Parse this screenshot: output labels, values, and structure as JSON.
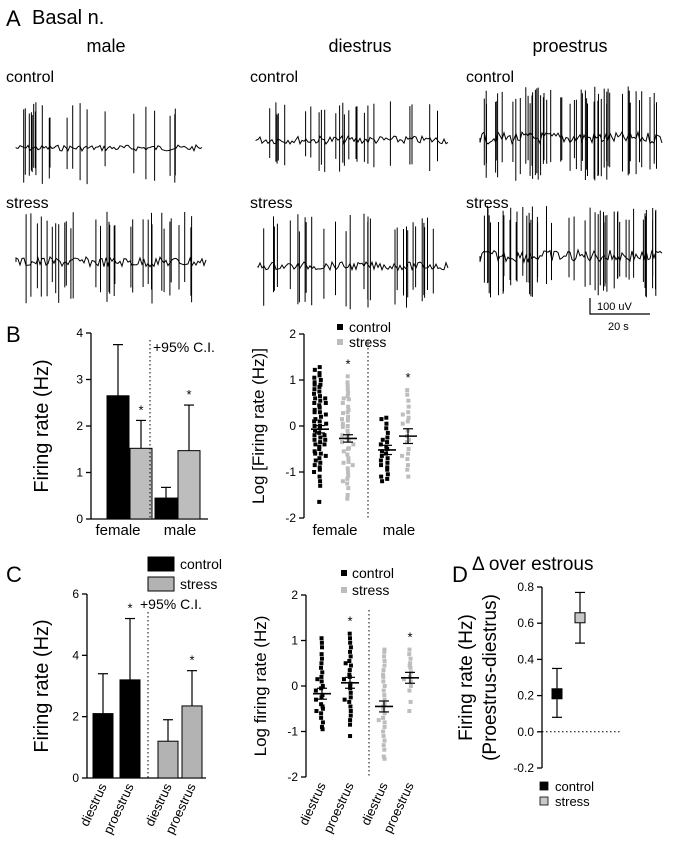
{
  "panel_a": {
    "letter": "A",
    "region": "Basal n.",
    "columns": [
      "male",
      "diestrus",
      "proestrus"
    ],
    "rows": [
      "control",
      "stress"
    ],
    "scale": {
      "voltage": "100 uV",
      "time": "20 s"
    }
  },
  "chart_data": [
    {
      "id": "B-left",
      "panel": "B",
      "type": "bar",
      "ylabel": "Firing rate (Hz)",
      "ylim": [
        0,
        4
      ],
      "yticks": [
        0,
        1,
        2,
        3,
        4
      ],
      "groups": [
        "female",
        "male"
      ],
      "annotation": "+95% C.I.",
      "bars": [
        {
          "group": "female",
          "series": "control",
          "value": 2.65,
          "ci_upper": 3.75,
          "sig": ""
        },
        {
          "group": "female",
          "series": "stress",
          "value": 1.52,
          "ci_upper": 2.12,
          "sig": "*"
        },
        {
          "group": "male",
          "series": "control",
          "value": 0.45,
          "ci_upper": 0.68,
          "sig": ""
        },
        {
          "group": "male",
          "series": "stress",
          "value": 1.47,
          "ci_upper": 2.45,
          "sig": "*"
        }
      ]
    },
    {
      "id": "B-right",
      "panel": "B",
      "type": "scatter",
      "ylabel": "Log [Firing rate (Hz)]",
      "ylim": [
        -2,
        2
      ],
      "yticks": [
        -2,
        -1,
        0,
        1,
        2
      ],
      "groups": [
        "female",
        "male"
      ],
      "legend": [
        {
          "name": "control",
          "color": "#000000"
        },
        {
          "name": "stress",
          "color": "#bdbdbd"
        }
      ],
      "series": [
        {
          "group": "female",
          "series": "control",
          "mean": -0.07,
          "sem": 0.08,
          "sig": "",
          "values": [
            1.28,
            1.22,
            1.15,
            1.1,
            1.05,
            1.0,
            0.95,
            0.9,
            0.85,
            0.8,
            0.75,
            0.7,
            0.65,
            0.6,
            0.55,
            0.5,
            0.45,
            0.4,
            0.35,
            0.3,
            0.25,
            0.2,
            0.15,
            0.1,
            0.05,
            0.0,
            -0.05,
            -0.1,
            -0.15,
            -0.2,
            -0.25,
            -0.3,
            -0.35,
            -0.4,
            -0.45,
            -0.5,
            -0.55,
            -0.6,
            -0.65,
            -0.7,
            -0.75,
            -0.8,
            -0.85,
            -0.9,
            -0.95,
            -1.0,
            -1.1,
            -1.2,
            -1.3,
            -1.65,
            0.9,
            0.5,
            0.1,
            -0.2,
            -0.4,
            -0.6,
            0.3,
            0.0,
            -0.3,
            0.6
          ]
        },
        {
          "group": "female",
          "series": "stress",
          "mean": -0.27,
          "sem": 0.08,
          "sig": "*",
          "values": [
            1.08,
            0.95,
            0.88,
            0.8,
            0.72,
            0.65,
            0.58,
            0.5,
            0.42,
            0.35,
            0.28,
            0.2,
            0.12,
            0.05,
            -0.02,
            -0.1,
            -0.18,
            -0.25,
            -0.32,
            -0.4,
            -0.48,
            -0.55,
            -0.62,
            -0.7,
            -0.78,
            -0.85,
            -0.92,
            -1.0,
            -1.08,
            -1.15,
            -1.25,
            -1.35,
            -1.5,
            -1.58,
            0.3,
            -0.2,
            -0.5,
            0.0,
            -0.8,
            0.6,
            -0.35,
            -1.2,
            0.15
          ]
        },
        {
          "group": "male",
          "series": "control",
          "mean": -0.52,
          "sem": 0.1,
          "sig": "",
          "values": [
            0.18,
            0.15,
            0.05,
            -0.05,
            -0.15,
            -0.25,
            -0.35,
            -0.45,
            -0.5,
            -0.55,
            -0.6,
            -0.65,
            -0.7,
            -0.75,
            -0.8,
            -0.85,
            -0.9,
            -0.95,
            -1.05,
            -1.1,
            -1.15,
            -1.2,
            -0.4,
            -0.3
          ]
        },
        {
          "group": "male",
          "series": "stress",
          "mean": -0.22,
          "sem": 0.16,
          "sig": "*",
          "values": [
            0.78,
            0.68,
            0.55,
            0.42,
            0.3,
            0.18,
            0.05,
            -0.1,
            -0.22,
            -0.35,
            -0.5,
            -0.6,
            -0.72,
            -0.85,
            -0.95,
            -1.1,
            0.1,
            -0.3,
            -0.65,
            0.25
          ]
        }
      ]
    },
    {
      "id": "C-left",
      "panel": "C",
      "type": "bar",
      "ylabel": "Firing rate (Hz)",
      "ylim": [
        0,
        6
      ],
      "yticks": [
        0,
        2,
        4,
        6
      ],
      "categories": [
        "diestrus",
        "proestrus",
        "diestrus",
        "proestrus"
      ],
      "annotation": "+95% C.I.",
      "legend": [
        {
          "name": "control",
          "color": "#000000"
        },
        {
          "name": "stress",
          "color": "#b3b3b3"
        }
      ],
      "bars": [
        {
          "category": "diestrus",
          "series": "control",
          "value": 2.1,
          "ci_upper": 3.4,
          "sig": ""
        },
        {
          "category": "proestrus",
          "series": "control",
          "value": 3.2,
          "ci_upper": 5.2,
          "sig": "*"
        },
        {
          "category": "diestrus",
          "series": "stress",
          "value": 1.2,
          "ci_upper": 1.9,
          "sig": ""
        },
        {
          "category": "proestrus",
          "series": "stress",
          "value": 2.35,
          "ci_upper": 3.5,
          "sig": "*"
        }
      ]
    },
    {
      "id": "C-right",
      "panel": "C",
      "type": "scatter",
      "ylabel": "Log firing rate (Hz)",
      "ylim": [
        -2,
        2
      ],
      "yticks": [
        -2,
        -1,
        0,
        1,
        2
      ],
      "categories": [
        "diestrus",
        "proestrus",
        "diestrus",
        "proestrus"
      ],
      "legend": [
        {
          "name": "control",
          "color": "#000000"
        },
        {
          "name": "stress",
          "color": "#bdbdbd"
        }
      ],
      "series": [
        {
          "category": "diestrus",
          "series": "control",
          "mean": -0.17,
          "sem": 0.12,
          "sig": "",
          "values": [
            1.05,
            0.95,
            0.85,
            0.7,
            0.6,
            0.5,
            0.4,
            0.3,
            0.2,
            0.1,
            0.0,
            -0.1,
            -0.2,
            -0.3,
            -0.4,
            -0.5,
            -0.6,
            -0.7,
            -0.8,
            -0.9,
            -0.95,
            -0.55,
            -0.25,
            0.15,
            -0.05,
            -0.45
          ]
        },
        {
          "category": "proestrus",
          "series": "control",
          "mean": 0.07,
          "sem": 0.12,
          "sig": "*",
          "values": [
            1.15,
            1.05,
            0.95,
            0.85,
            0.75,
            0.65,
            0.55,
            0.45,
            0.35,
            0.25,
            0.15,
            0.05,
            -0.05,
            -0.15,
            -0.25,
            -0.35,
            -0.45,
            -0.55,
            -0.65,
            -0.75,
            -0.85,
            -1.1,
            0.2,
            -0.3,
            0.5,
            0.0
          ]
        },
        {
          "category": "diestrus",
          "series": "stress",
          "mean": -0.45,
          "sem": 0.12,
          "sig": "",
          "values": [
            0.8,
            0.75,
            0.65,
            0.55,
            0.45,
            0.35,
            0.25,
            0.1,
            0.0,
            -0.1,
            -0.2,
            -0.3,
            -0.4,
            -0.5,
            -0.6,
            -0.7,
            -0.8,
            -0.9,
            -1.0,
            -1.1,
            -1.2,
            -1.3,
            -1.4,
            -1.55,
            -1.6,
            -0.45,
            -0.75,
            0.2
          ]
        },
        {
          "category": "proestrus",
          "series": "stress",
          "mean": 0.18,
          "sem": 0.12,
          "sig": "*",
          "values": [
            0.8,
            0.7,
            0.6,
            0.5,
            0.4,
            0.3,
            0.2,
            0.1,
            0.0,
            -0.1,
            -0.35,
            -0.55,
            0.45,
            0.15
          ]
        }
      ]
    },
    {
      "id": "D",
      "panel": "D",
      "type": "scatter",
      "title": "Δ over estrous",
      "ylabel": [
        "Firing rate (Hz)",
        "(Proestrus-diestrus)"
      ],
      "ylim": [
        -0.2,
        0.8
      ],
      "yticks": [
        -0.2,
        0.0,
        0.2,
        0.4,
        0.6,
        0.8
      ],
      "reference_line": 0,
      "legend": [
        {
          "name": "control",
          "color": "#000000"
        },
        {
          "name": "stress",
          "color": "#c8c8c8"
        }
      ],
      "points": [
        {
          "series": "control",
          "value": 0.21,
          "low": 0.08,
          "high": 0.35
        },
        {
          "series": "stress",
          "value": 0.63,
          "low": 0.49,
          "high": 0.77
        }
      ]
    }
  ]
}
